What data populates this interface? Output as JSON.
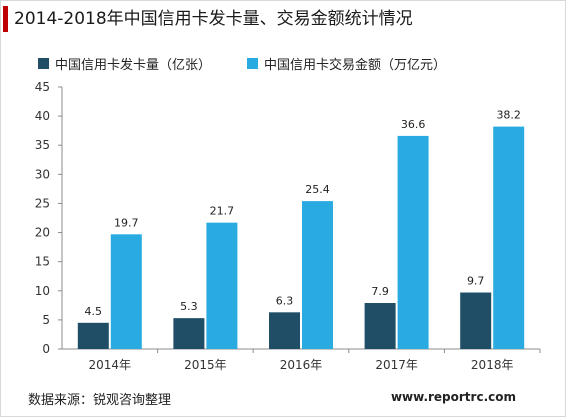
{
  "title": "2014-2018年中国信用卡发卡量、交易金额统计情况",
  "source_text": "数据来源：锐观咨询整理",
  "website": "www.reportrc.com",
  "colors": {
    "accent": "#c00000",
    "series_cards": "#1f4e66",
    "series_amount": "#29abe2"
  },
  "chart_data": {
    "type": "bar",
    "title": "2014-2018年中国信用卡发卡量、交易金额统计情况",
    "xlabel": "",
    "ylabel": "",
    "categories": [
      "2014年",
      "2015年",
      "2016年",
      "2017年",
      "2018年"
    ],
    "series": [
      {
        "name": "中国信用卡发卡量（亿张）",
        "values": [
          4.5,
          5.3,
          6.3,
          7.9,
          9.7
        ]
      },
      {
        "name": "中国信用卡交易金额（万亿元）",
        "values": [
          19.7,
          21.7,
          25.4,
          36.6,
          38.2
        ]
      }
    ],
    "ylim": [
      0,
      45
    ],
    "yticks": [
      0,
      5,
      10,
      15,
      20,
      25,
      30,
      35,
      40,
      45
    ],
    "legend_position": "top",
    "grid": false
  }
}
